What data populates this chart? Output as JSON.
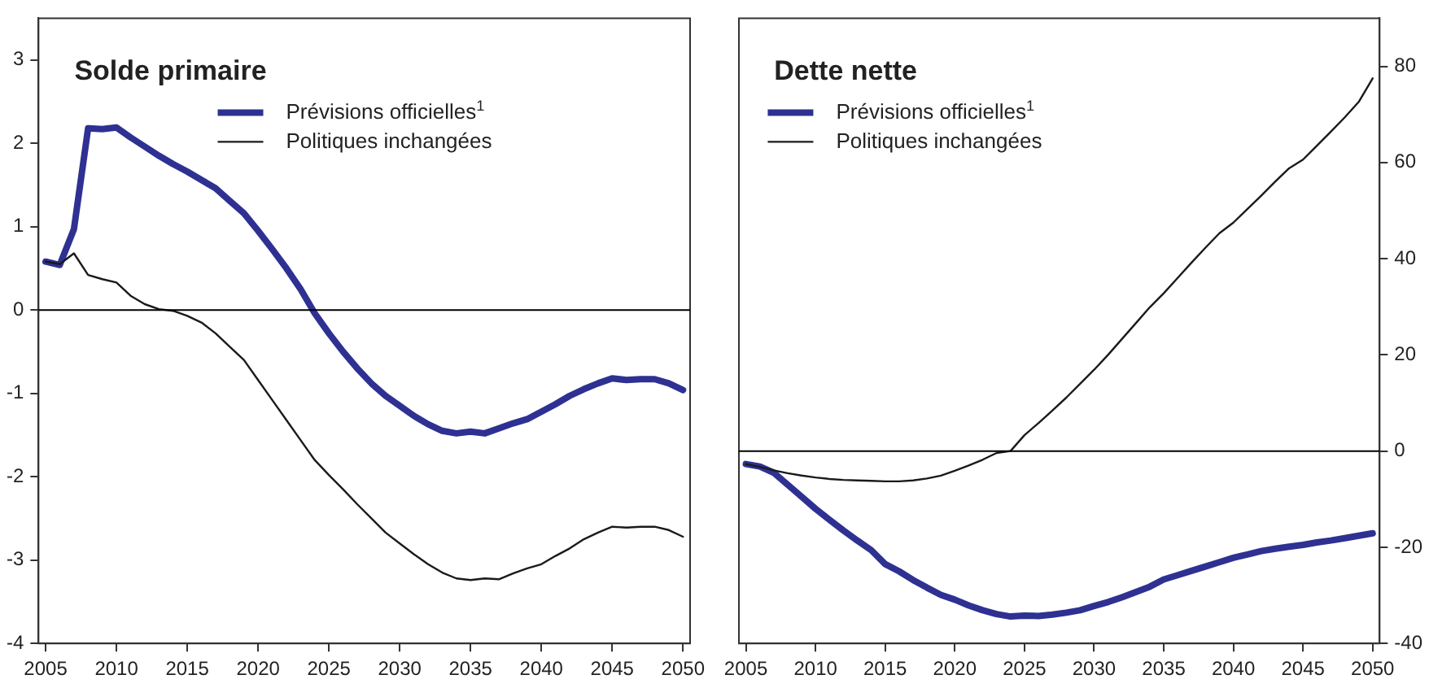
{
  "chart_data": [
    {
      "type": "line",
      "title": "Solde primaire",
      "legend": "top",
      "x": [
        2005,
        2006,
        2007,
        2008,
        2009,
        2010,
        2011,
        2012,
        2013,
        2014,
        2015,
        2016,
        2017,
        2018,
        2019,
        2020,
        2021,
        2022,
        2023,
        2024,
        2025,
        2026,
        2027,
        2028,
        2029,
        2030,
        2031,
        2032,
        2033,
        2034,
        2035,
        2036,
        2037,
        2038,
        2039,
        2040,
        2041,
        2042,
        2043,
        2044,
        2045,
        2046,
        2047,
        2048,
        2049,
        2050
      ],
      "xlim": [
        2004.5,
        2050.5
      ],
      "xticks": [
        2005,
        2010,
        2015,
        2020,
        2025,
        2030,
        2035,
        2040,
        2045,
        2050
      ],
      "ylim": [
        -4,
        3.5
      ],
      "yticks": [
        -4,
        -3,
        -2,
        -1,
        0,
        1,
        2,
        3
      ],
      "ref_lines": [
        {
          "axis": "y",
          "value": 0
        }
      ],
      "series": [
        {
          "name": "Prévisions officielles$^{1}$",
          "color": "#2e3192",
          "values": [
            0.58,
            0.54,
            0.97,
            2.18,
            2.17,
            2.19,
            2.07,
            1.96,
            1.85,
            1.75,
            1.66,
            1.56,
            1.46,
            1.31,
            1.16,
            0.95,
            0.73,
            0.5,
            0.25,
            -0.04,
            -0.28,
            -0.5,
            -0.7,
            -0.88,
            -1.03,
            -1.15,
            -1.27,
            -1.37,
            -1.45,
            -1.48,
            -1.46,
            -1.48,
            -1.42,
            -1.36,
            -1.31,
            -1.22,
            -1.13,
            -1.03,
            -0.95,
            -0.88,
            -0.82,
            -0.84,
            -0.83,
            -0.83,
            -0.88,
            -0.96
          ]
        },
        {
          "name": "Politiques inchangées",
          "color": "#1a1a1a",
          "values": [
            0.58,
            0.55,
            0.68,
            0.42,
            0.37,
            0.33,
            0.17,
            0.07,
            0.01,
            -0.01,
            -0.07,
            -0.15,
            -0.28,
            -0.44,
            -0.6,
            -0.84,
            -1.08,
            -1.32,
            -1.56,
            -1.8,
            -1.98,
            -2.15,
            -2.33,
            -2.5,
            -2.67,
            -2.8,
            -2.93,
            -3.05,
            -3.15,
            -3.22,
            -3.24,
            -3.22,
            -3.23,
            -3.16,
            -3.1,
            -3.05,
            -2.95,
            -2.86,
            -2.75,
            -2.67,
            -2.6,
            -2.61,
            -2.6,
            -2.6,
            -2.64,
            -2.72
          ]
        }
      ]
    },
    {
      "type": "line",
      "title": "Dette nette",
      "legend": "top left",
      "x": [
        2005,
        2006,
        2007,
        2008,
        2009,
        2010,
        2011,
        2012,
        2013,
        2014,
        2015,
        2016,
        2017,
        2018,
        2019,
        2020,
        2021,
        2022,
        2023,
        2024,
        2025,
        2026,
        2027,
        2028,
        2029,
        2030,
        2031,
        2032,
        2033,
        2034,
        2035,
        2036,
        2037,
        2038,
        2039,
        2040,
        2041,
        2042,
        2043,
        2044,
        2045,
        2046,
        2047,
        2048,
        2049,
        2050
      ],
      "xlim": [
        2004.5,
        2050.5
      ],
      "xticks": [
        2005,
        2010,
        2015,
        2020,
        2025,
        2030,
        2035,
        2040,
        2045,
        2050
      ],
      "y2lim": [
        -40,
        90
      ],
      "y2ticks": [
        -40,
        -20,
        0,
        20,
        40,
        60,
        80
      ],
      "ref_lines": [
        {
          "axis": "y2",
          "value": 0
        }
      ],
      "series": [
        {
          "name": "Prévisions officielles$^{1}$",
          "color": "#2e3192",
          "axis": "y2",
          "values": [
            -2.7,
            -3.2,
            -4.5,
            -7,
            -9.5,
            -12,
            -14.3,
            -16.5,
            -18.6,
            -20.6,
            -23.5,
            -25,
            -26.8,
            -28.4,
            -29.9,
            -30.9,
            -32.1,
            -33.1,
            -33.9,
            -34.4,
            -34.2,
            -34.3,
            -34,
            -33.6,
            -33.1,
            -32.2,
            -31.4,
            -30.4,
            -29.3,
            -28.2,
            -26.7,
            -25.8,
            -24.9,
            -24,
            -23.1,
            -22.2,
            -21.5,
            -20.8,
            -20.3,
            -19.9,
            -19.5,
            -19,
            -18.6,
            -18.1,
            -17.6,
            -17.1
          ]
        },
        {
          "name": "Politiques inchangées",
          "color": "#1a1a1a",
          "axis": "y2",
          "values": [
            -2.7,
            -3.3,
            -4,
            -4.6,
            -5.1,
            -5.5,
            -5.8,
            -6,
            -6.1,
            -6.2,
            -6.3,
            -6.3,
            -6.1,
            -5.7,
            -5.1,
            -4.1,
            -3,
            -1.8,
            -0.4,
            0,
            3.3,
            5.8,
            8.4,
            11.1,
            14,
            16.9,
            20,
            23.3,
            26.6,
            29.9,
            32.8,
            36,
            39.2,
            42.3,
            45.3,
            47.5,
            50.3,
            53.1,
            56,
            58.8,
            60.6,
            63.5,
            66.4,
            69.4,
            72.6,
            77.5
          ]
        }
      ]
    }
  ]
}
